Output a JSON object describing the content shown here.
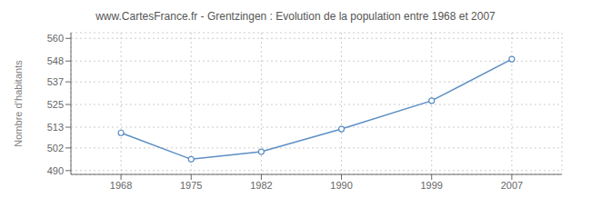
{
  "chart_data": {
    "type": "line",
    "title": "www.CartesFrance.fr - Grentzingen : Evolution de la population entre 1968 et 2007",
    "y_label": "Nombre d’habitants",
    "x": [
      1968,
      1975,
      1982,
      1990,
      1999,
      2007
    ],
    "values": [
      510,
      496,
      500,
      512,
      527,
      549
    ],
    "color": "#5b8ec4",
    "marker": "circle",
    "grid": true,
    "xlim": [
      1963,
      2012
    ],
    "xticks": [
      1968,
      1975,
      1982,
      1990,
      1999,
      2007
    ],
    "ylim": [
      488,
      563
    ],
    "yticks": [
      490,
      502,
      513,
      525,
      537,
      548,
      560
    ]
  }
}
